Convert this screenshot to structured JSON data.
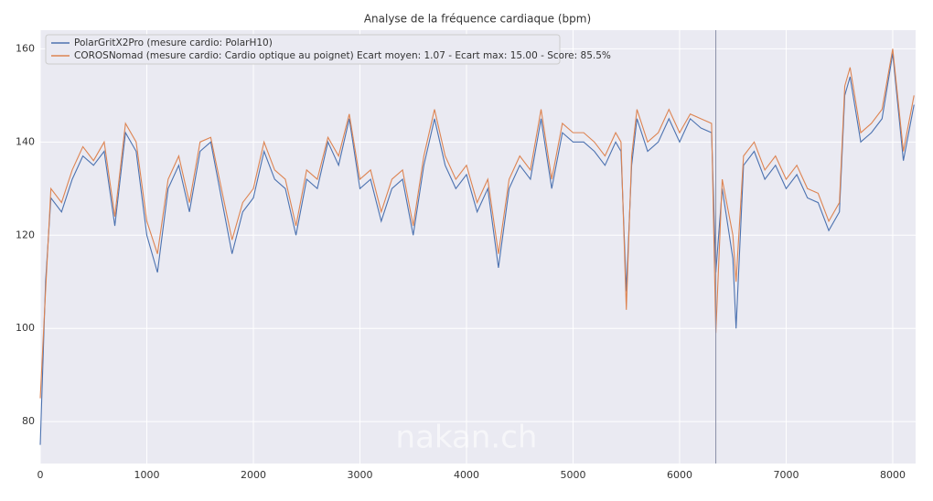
{
  "chart_data": {
    "type": "line",
    "title": "Analyse de la fréquence cardiaque (bpm)",
    "x": [
      0,
      50,
      100,
      200,
      300,
      400,
      500,
      600,
      700,
      800,
      900,
      1000,
      1100,
      1200,
      1300,
      1400,
      1500,
      1600,
      1700,
      1800,
      1900,
      2000,
      2100,
      2200,
      2300,
      2400,
      2500,
      2600,
      2700,
      2800,
      2900,
      3000,
      3100,
      3200,
      3300,
      3400,
      3500,
      3600,
      3700,
      3800,
      3900,
      4000,
      4100,
      4200,
      4300,
      4400,
      4500,
      4600,
      4700,
      4800,
      4900,
      5000,
      5100,
      5200,
      5300,
      5400,
      5450,
      5500,
      5550,
      5600,
      5700,
      5800,
      5900,
      6000,
      6100,
      6200,
      6300,
      6340,
      6400,
      6500,
      6530,
      6600,
      6700,
      6800,
      6900,
      7000,
      7100,
      7200,
      7300,
      7400,
      7500,
      7550,
      7600,
      7700,
      7800,
      7900,
      8000,
      8100,
      8200
    ],
    "series": [
      {
        "name": "PolarGritX2Pro (mesure cardio: PolarH10)",
        "color": "#4c72b0",
        "values": [
          75,
          110,
          128,
          125,
          132,
          137,
          135,
          138,
          122,
          142,
          138,
          120,
          112,
          130,
          135,
          125,
          138,
          140,
          128,
          116,
          125,
          128,
          138,
          132,
          130,
          120,
          132,
          130,
          140,
          135,
          145,
          130,
          132,
          123,
          130,
          132,
          120,
          135,
          145,
          135,
          130,
          133,
          125,
          130,
          113,
          130,
          135,
          132,
          145,
          130,
          142,
          140,
          140,
          138,
          135,
          140,
          138,
          108,
          135,
          145,
          138,
          140,
          145,
          140,
          145,
          143,
          142,
          112,
          130,
          115,
          100,
          135,
          138,
          132,
          135,
          130,
          133,
          128,
          127,
          121,
          125,
          150,
          154,
          140,
          142,
          145,
          159,
          136,
          148
        ]
      },
      {
        "name": "COROSNomad (mesure cardio: Cardio optique au poignet) Ecart moyen: 1.07 - Ecart max: 15.00 - Score: 85.5%",
        "color": "#dd8452",
        "values": [
          85,
          108,
          130,
          127,
          134,
          139,
          136,
          140,
          124,
          144,
          140,
          123,
          116,
          132,
          137,
          127,
          140,
          141,
          130,
          119,
          127,
          130,
          140,
          134,
          132,
          122,
          134,
          132,
          141,
          137,
          146,
          132,
          134,
          125,
          132,
          134,
          122,
          137,
          147,
          137,
          132,
          135,
          127,
          132,
          116,
          132,
          137,
          134,
          147,
          132,
          144,
          142,
          142,
          140,
          137,
          142,
          140,
          104,
          137,
          147,
          140,
          142,
          147,
          142,
          146,
          145,
          144,
          99,
          132,
          120,
          110,
          137,
          140,
          134,
          137,
          132,
          135,
          130,
          129,
          123,
          127,
          152,
          156,
          142,
          144,
          147,
          160,
          138,
          150
        ]
      }
    ],
    "vline": 6340,
    "xlim": [
      0,
      8215
    ],
    "ylim": [
      71,
      164
    ],
    "xticks": [
      0,
      1000,
      2000,
      3000,
      4000,
      5000,
      6000,
      7000,
      8000
    ],
    "yticks": [
      80,
      100,
      120,
      140,
      160
    ],
    "grid": true,
    "legend": "upper left",
    "watermark": "nakan.ch"
  }
}
